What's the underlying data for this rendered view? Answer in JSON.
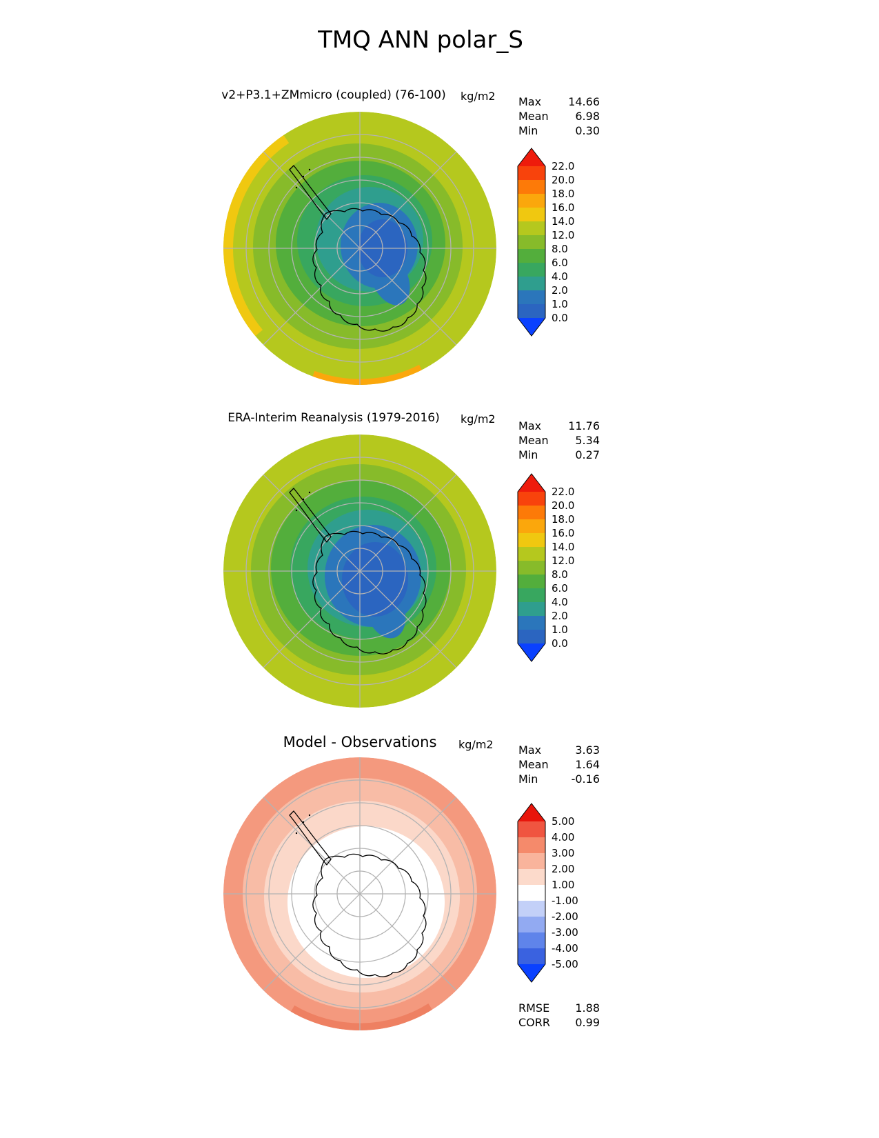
{
  "title": "TMQ ANN polar_S",
  "panels": [
    {
      "title": "v2+P3.1+ZMmicro (coupled) (76-100)",
      "units": "kg/m2",
      "stats": [
        {
          "label": "Max",
          "value": "14.66"
        },
        {
          "label": "Mean",
          "value": "6.98"
        },
        {
          "label": "Min",
          "value": "0.30"
        }
      ],
      "colorbar": {
        "labels": [
          "22.0",
          "20.0",
          "18.0",
          "16.0",
          "14.0",
          "12.0",
          "8.0",
          "6.0",
          "4.0",
          "2.0",
          "1.0",
          "0.0"
        ],
        "segment_colors_top_to_bottom": [
          "#f8430c",
          "#fd7a08",
          "#fba70c",
          "#f0c810",
          "#b5c81e",
          "#87bb2a",
          "#53ae3c",
          "#38a75f",
          "#2f9e8e",
          "#2b76bb",
          "#2b65c0"
        ],
        "arrow_top": "#ee1b0c",
        "arrow_bottom": "#0a41ff"
      }
    },
    {
      "title": "ERA-Interim Reanalysis (1979-2016)",
      "units": "kg/m2",
      "stats": [
        {
          "label": "Max",
          "value": "11.76"
        },
        {
          "label": "Mean",
          "value": "5.34"
        },
        {
          "label": "Min",
          "value": "0.27"
        }
      ],
      "colorbar": {
        "labels": [
          "22.0",
          "20.0",
          "18.0",
          "16.0",
          "14.0",
          "12.0",
          "8.0",
          "6.0",
          "4.0",
          "2.0",
          "1.0",
          "0.0"
        ],
        "segment_colors_top_to_bottom": [
          "#f8430c",
          "#fd7a08",
          "#fba70c",
          "#f0c810",
          "#b5c81e",
          "#87bb2a",
          "#53ae3c",
          "#38a75f",
          "#2f9e8e",
          "#2b76bb",
          "#2b65c0"
        ],
        "arrow_top": "#ee1b0c",
        "arrow_bottom": "#0a41ff"
      }
    },
    {
      "title": "Model - Observations",
      "units": "kg/m2",
      "stats": [
        {
          "label": "Max",
          "value": "3.63"
        },
        {
          "label": "Mean",
          "value": "1.64"
        },
        {
          "label": "Min",
          "value": "-0.16"
        }
      ],
      "extra_stats": [
        {
          "label": "RMSE",
          "value": "1.88"
        },
        {
          "label": "CORR",
          "value": "0.99"
        }
      ],
      "colorbar": {
        "labels": [
          "5.00",
          "4.00",
          "3.00",
          "2.00",
          "1.00",
          "-1.00",
          "-2.00",
          "-3.00",
          "-4.00",
          "-5.00"
        ],
        "segment_colors_top_to_bottom": [
          "#f05540",
          "#f58a6b",
          "#f9b49c",
          "#fcdacb",
          "#ffffff",
          "#c3d0f8",
          "#92aaf2",
          "#5f84ea",
          "#3a62e0"
        ],
        "arrow_top": "#e8150b",
        "arrow_bottom": "#0a41ff"
      }
    }
  ],
  "chart_data": [
    {
      "type": "heatmap",
      "subtype": "filled-contour polar map",
      "projection": "south polar stereographic",
      "variable": "TMQ (total precipitable water)",
      "season": "ANN",
      "title": "v2+P3.1+ZMmicro (coupled) (76-100)",
      "units": "kg/m2",
      "stats": {
        "max": 14.66,
        "mean": 6.98,
        "min": 0.3
      },
      "contour_levels": [
        0.0,
        1.0,
        2.0,
        4.0,
        6.0,
        8.0,
        12.0,
        14.0,
        16.0,
        18.0,
        20.0,
        22.0
      ],
      "colormap_low_to_high": [
        "#2b65c0",
        "#2b76bb",
        "#2f9e8e",
        "#38a75f",
        "#53ae3c",
        "#87bb2a",
        "#b5c81e",
        "#f0c810",
        "#fba70c",
        "#fd7a08",
        "#f8430c"
      ],
      "pattern": "lowest values (0-2 kg/m2, blue) over East Antarctic interior, increasing outward through greens to 12-16 kg/m2 (olive/yellow, with orange patches) at the equatorward map edge"
    },
    {
      "type": "heatmap",
      "subtype": "filled-contour polar map",
      "projection": "south polar stereographic",
      "variable": "TMQ (total precipitable water)",
      "season": "ANN",
      "title": "ERA-Interim Reanalysis (1979-2016)",
      "units": "kg/m2",
      "stats": {
        "max": 11.76,
        "mean": 5.34,
        "min": 0.27
      },
      "contour_levels": [
        0.0,
        1.0,
        2.0,
        4.0,
        6.0,
        8.0,
        12.0,
        14.0,
        16.0,
        18.0,
        20.0,
        22.0
      ],
      "colormap_low_to_high": [
        "#2b65c0",
        "#2b76bb",
        "#2f9e8e",
        "#38a75f",
        "#53ae3c",
        "#87bb2a",
        "#b5c81e",
        "#f0c810",
        "#fba70c",
        "#fd7a08",
        "#f8430c"
      ],
      "pattern": "larger and deeper blue (0-2 kg/m2) region over Antarctica than the model panel; olive/green (8-12 kg/m2) toward map edge"
    },
    {
      "type": "heatmap",
      "subtype": "filled-contour polar difference map",
      "projection": "south polar stereographic",
      "variable": "TMQ difference",
      "title": "Model - Observations",
      "units": "kg/m2",
      "stats": {
        "max": 3.63,
        "mean": 1.64,
        "min": -0.16,
        "rmse": 1.88,
        "corr": 0.99
      },
      "contour_levels": [
        -5.0,
        -4.0,
        -3.0,
        -2.0,
        -1.0,
        1.0,
        2.0,
        3.0,
        4.0,
        5.0
      ],
      "colormap_low_to_high": [
        "#3a62e0",
        "#5f84ea",
        "#92aaf2",
        "#c3d0f8",
        "#ffffff",
        "#fcdacb",
        "#f9b49c",
        "#f58a6b",
        "#f05540"
      ],
      "pattern": "near-zero difference (white) over the Antarctic continent, moist bias of about +1 to +3 kg/m2 (light red/pink) over surrounding ocean"
    }
  ]
}
